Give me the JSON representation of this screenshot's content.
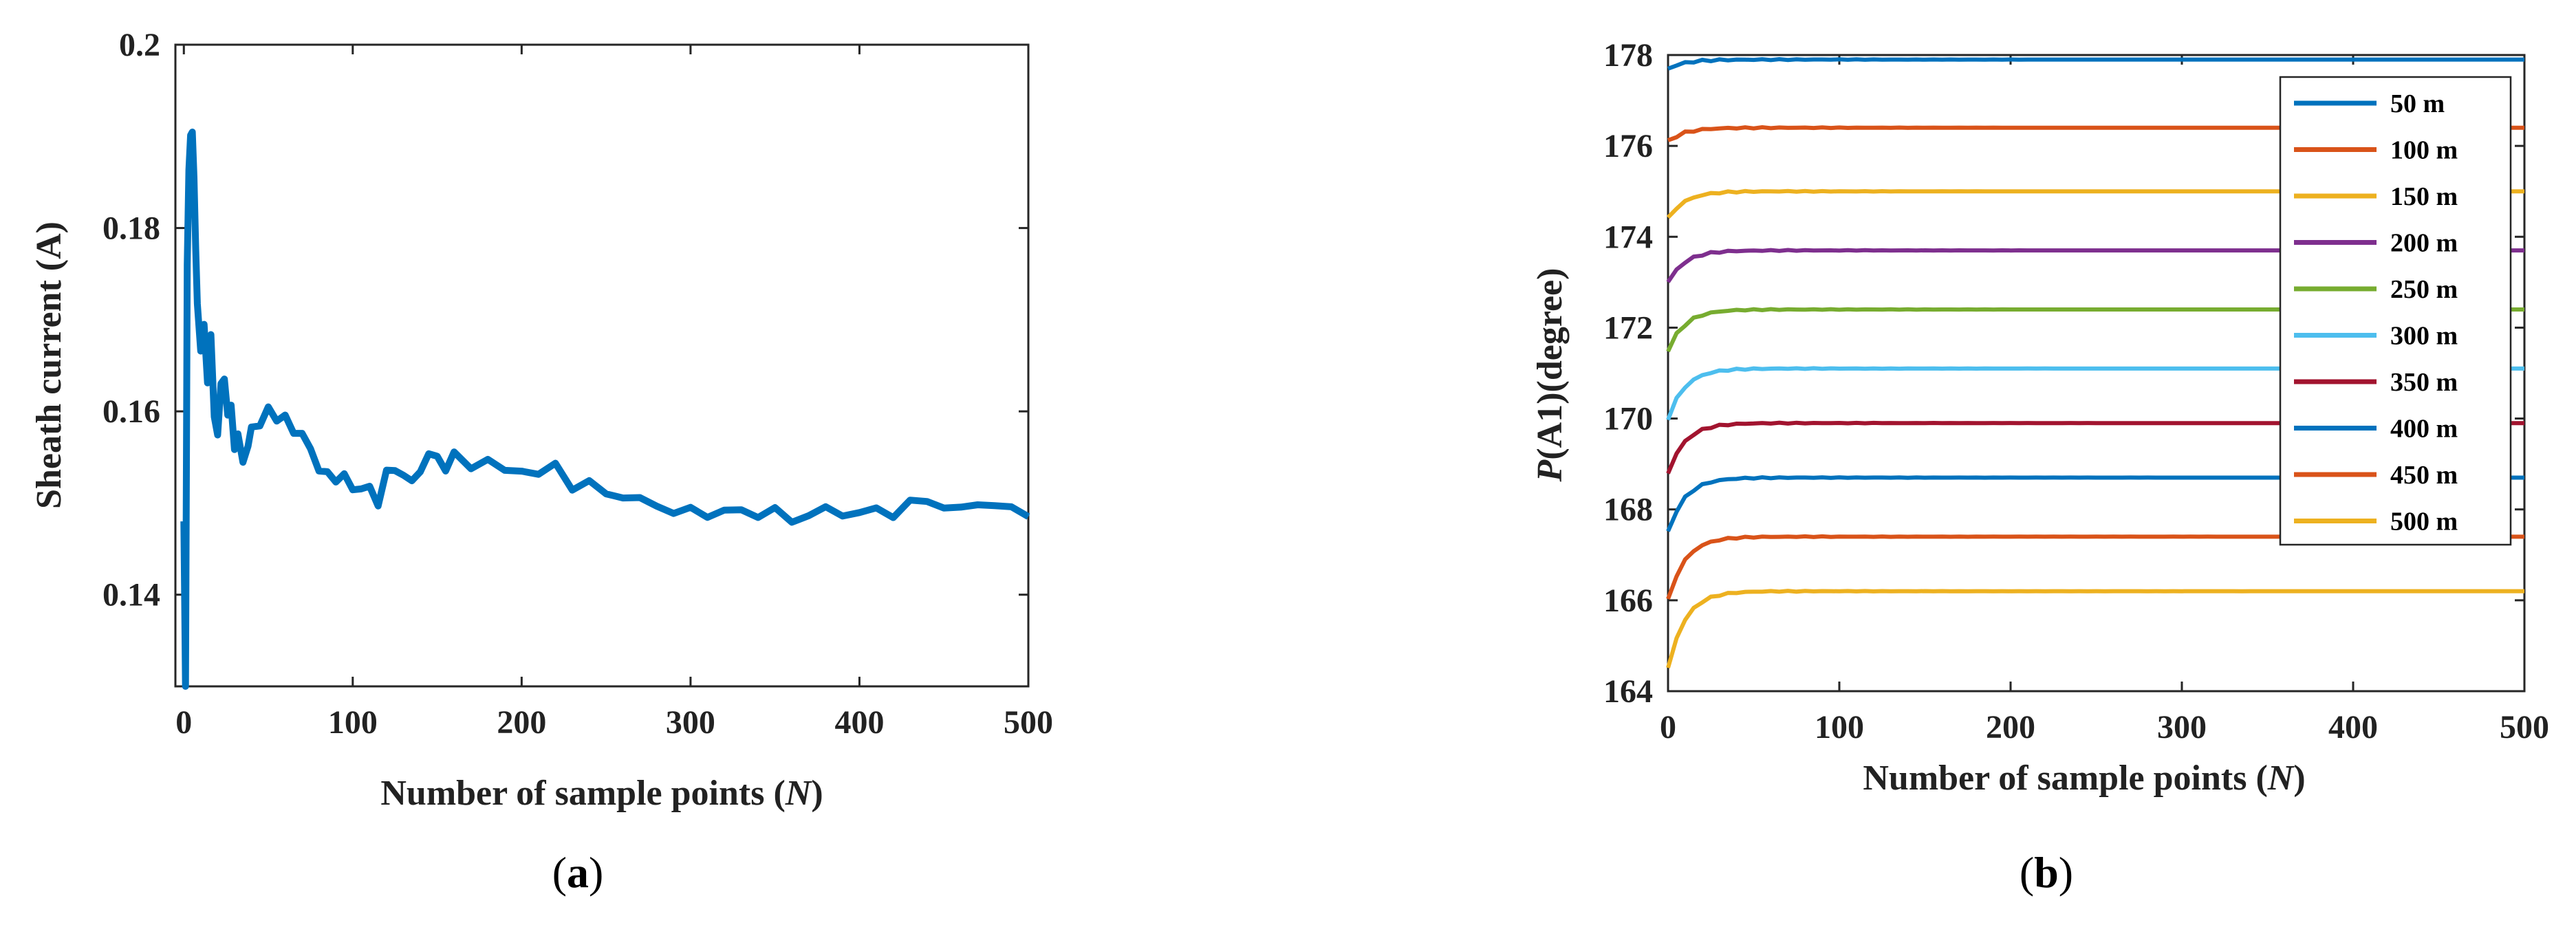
{
  "figure": {
    "panels": [
      {
        "label_open": "(",
        "label_letter": "a",
        "label_close": ")"
      },
      {
        "label_open": "(",
        "label_letter": "b",
        "label_close": ")"
      }
    ]
  },
  "chart_data": [
    {
      "type": "line",
      "panel": "a",
      "title": "",
      "xlabel_main": "Number of sample points ",
      "xlabel_paren_open": "(",
      "xlabel_var": "N",
      "xlabel_paren_close": ")",
      "ylabel": "Sheath current (A)",
      "xlim": [
        -5,
        500
      ],
      "ylim": [
        0.13,
        0.2
      ],
      "xticks": [
        0,
        100,
        200,
        300,
        400,
        500
      ],
      "yticks": [
        0.14,
        0.16,
        0.18,
        0.2
      ],
      "xtick_labels": [
        "0",
        "100",
        "200",
        "300",
        "400",
        "500"
      ],
      "ytick_labels": [
        "0.14",
        "0.16",
        "0.18",
        "0.2"
      ],
      "color": "#0072BD",
      "series": [
        {
          "name": "Sheath current",
          "x": [
            0,
            1,
            2,
            3,
            4,
            5,
            6,
            7,
            8,
            10,
            12,
            14,
            16,
            18,
            20,
            22,
            24,
            26,
            28,
            30,
            32,
            35,
            38,
            40,
            45,
            50,
            55,
            60,
            65,
            70,
            75,
            80,
            85,
            90,
            95,
            100,
            105,
            110,
            115,
            120,
            125,
            130,
            135,
            140,
            145,
            150,
            155,
            160,
            170,
            180,
            190,
            200,
            210,
            220,
            230,
            240,
            250,
            260,
            270,
            280,
            290,
            300,
            310,
            320,
            330,
            340,
            350,
            360,
            370,
            380,
            390,
            400,
            410,
            420,
            430,
            440,
            450,
            460,
            470,
            480,
            490,
            500
          ],
          "y": [
            0.148,
            0.13,
            0.176,
            0.186,
            0.19,
            0.191,
            0.185,
            0.178,
            0.172,
            0.166,
            0.17,
            0.163,
            0.168,
            0.16,
            0.157,
            0.163,
            0.164,
            0.159,
            0.161,
            0.156,
            0.157,
            0.155,
            0.156,
            0.158,
            0.159,
            0.16,
            0.159,
            0.16,
            0.157,
            0.158,
            0.156,
            0.153,
            0.154,
            0.152,
            0.153,
            0.152,
            0.151,
            0.152,
            0.15,
            0.153,
            0.154,
            0.153,
            0.152,
            0.154,
            0.155,
            0.155,
            0.154,
            0.155,
            0.154,
            0.155,
            0.153,
            0.154,
            0.153,
            0.154,
            0.152,
            0.152,
            0.151,
            0.151,
            0.15,
            0.15,
            0.149,
            0.149,
            0.149,
            0.149,
            0.149,
            0.149,
            0.149,
            0.148,
            0.149,
            0.149,
            0.149,
            0.149,
            0.149,
            0.149,
            0.15,
            0.15,
            0.15,
            0.149,
            0.15,
            0.15,
            0.149,
            0.149
          ]
        }
      ]
    },
    {
      "type": "line",
      "panel": "b",
      "title": "",
      "xlabel_main": "Number of sample points ",
      "xlabel_paren_open": "(",
      "xlabel_var": "N",
      "xlabel_paren_close": ")",
      "ylabel_var": "P",
      "ylabel_rest": "(A1)(degree)",
      "xlim": [
        0,
        500
      ],
      "ylim": [
        164,
        178
      ],
      "xticks": [
        0,
        100,
        200,
        300,
        400,
        500
      ],
      "yticks": [
        164,
        166,
        168,
        170,
        172,
        174,
        176,
        178
      ],
      "xtick_labels": [
        "0",
        "100",
        "200",
        "300",
        "400",
        "500"
      ],
      "ytick_labels": [
        "164",
        "166",
        "168",
        "170",
        "172",
        "174",
        "176",
        "178"
      ],
      "legend_position": "top-right",
      "series": [
        {
          "name": "50 m",
          "color": "#0072BD",
          "start": 177.7,
          "steady": 177.9
        },
        {
          "name": "100 m",
          "color": "#D95319",
          "start": 176.1,
          "steady": 176.4
        },
        {
          "name": "150 m",
          "color": "#EDB120",
          "start": 174.4,
          "steady": 175.0
        },
        {
          "name": "200 m",
          "color": "#7E2F8E",
          "start": 173.0,
          "steady": 173.7
        },
        {
          "name": "250 m",
          "color": "#77AC30",
          "start": 171.5,
          "steady": 172.4
        },
        {
          "name": "300 m",
          "color": "#4DBEEE",
          "start": 170.0,
          "steady": 171.1
        },
        {
          "name": "350 m",
          "color": "#A2142F",
          "start": 168.8,
          "steady": 169.9
        },
        {
          "name": "400 m",
          "color": "#0072BD",
          "start": 167.5,
          "steady": 168.7
        },
        {
          "name": "450 m",
          "color": "#D95319",
          "start": 166.0,
          "steady": 167.4
        },
        {
          "name": "500 m",
          "color": "#EDB120",
          "start": 164.5,
          "steady": 166.2
        }
      ]
    }
  ]
}
